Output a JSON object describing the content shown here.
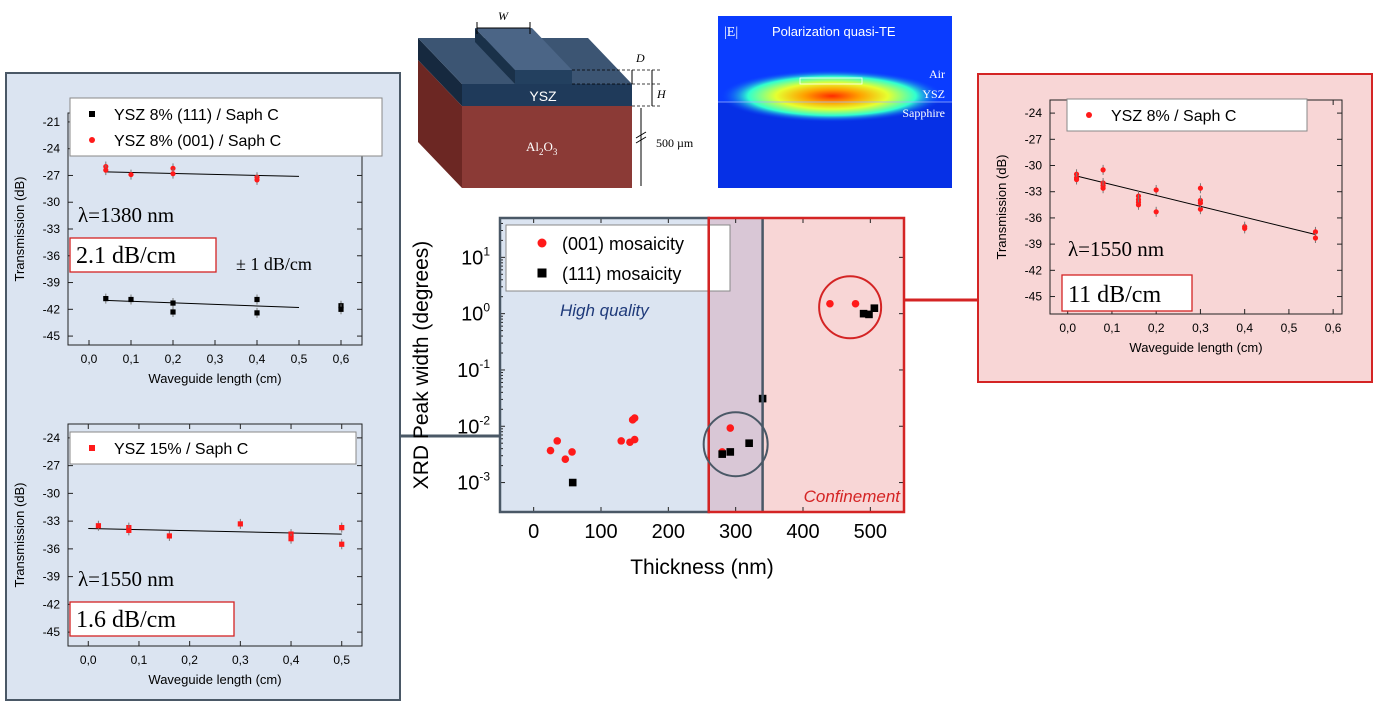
{
  "colors": {
    "panel_blue": "#dbe4f1",
    "panel_red": "#f8d6d6",
    "panel_purple": "#d9c7d6",
    "red_marker": "#ff1a1a",
    "black_marker": "#000000",
    "frame_red": "#d42424",
    "frame_gray": "#4a5866",
    "slab_top": "#1f3a5a",
    "substrate": "#8b3a36"
  },
  "diagram": {
    "label_W": "W",
    "label_D": "D",
    "label_H": "H",
    "label_ysz": "YSZ",
    "label_al2o3": "Al",
    "label_al2o3_sub1": "2",
    "label_al2o3_mid": "O",
    "label_al2o3_sub2": "3",
    "label_thickness": "500 µm"
  },
  "mode_image": {
    "label_E": "|E|",
    "title": "Polarization quasi-TE",
    "label_air": "Air",
    "label_ysz": "YSZ",
    "label_sapphire": "Sapphire"
  },
  "chart_data": [
    {
      "id": "main",
      "type": "scatter",
      "xlabel": "Thickness (nm)",
      "ylabel": "XRD Peak width (degrees)",
      "xlim": [
        -50,
        550
      ],
      "ylim": [
        0.0003,
        50
      ],
      "yscale": "log",
      "xticks": [
        0,
        100,
        200,
        300,
        400,
        500
      ],
      "xtick_labels": [
        "0",
        "100",
        "200",
        "300",
        "400",
        "500"
      ],
      "yticks": [
        0.001,
        0.01,
        0.1,
        1,
        10
      ],
      "ytick_bases": [
        "10",
        "10",
        "10",
        "10",
        "10"
      ],
      "ytick_exps": [
        "-3",
        "-2",
        "-1",
        "0",
        "1"
      ],
      "legend_position": "top-left",
      "regions": [
        {
          "label": "High quality",
          "from": -50,
          "to": 260,
          "color": "#dbe4f1"
        },
        {
          "label": "",
          "from": 260,
          "to": 340,
          "color": "#d9c7d6"
        },
        {
          "label": "Confinement",
          "from": 340,
          "to": 550,
          "color": "#f8d6d6"
        }
      ],
      "series": [
        {
          "name": "(001) mosaicity",
          "marker": "circle",
          "color": "#ff1a1a",
          "x": [
            25,
            35,
            47,
            57,
            130,
            143,
            147,
            150,
            150,
            280,
            292,
            440,
            478
          ],
          "y": [
            0.0037,
            0.0055,
            0.0026,
            0.0035,
            0.0055,
            0.0052,
            0.013,
            0.014,
            0.0058,
            0.0035,
            0.0093,
            1.5,
            1.5
          ]
        },
        {
          "name": "(111) mosaicity",
          "marker": "square",
          "color": "#000000",
          "x": [
            58,
            280,
            292,
            320,
            340,
            490,
            498,
            506
          ],
          "y": [
            0.001,
            0.0032,
            0.0035,
            0.005,
            0.031,
            1.0,
            0.97,
            1.25
          ]
        }
      ]
    },
    {
      "id": "top_left",
      "type": "scatter",
      "xlabel": "Waveguide length (cm)",
      "ylabel": "Transmission (dB)",
      "xlim": [
        -0.05,
        0.65
      ],
      "ylim": [
        -46,
        -20
      ],
      "xticks": [
        0.0,
        0.1,
        0.2,
        0.3,
        0.4,
        0.5,
        0.6
      ],
      "xtick_labels": [
        "0,0",
        "0,1",
        "0,2",
        "0,3",
        "0,4",
        "0,5",
        "0,6"
      ],
      "yticks": [
        -45,
        -42,
        -39,
        -36,
        -33,
        -30,
        -27,
        -24,
        -21
      ],
      "ytick_labels": [
        "-45",
        "-42",
        "-39",
        "-36",
        "-33",
        "-30",
        "-27",
        "-24",
        "-21"
      ],
      "legend_position": "top",
      "annotations": [
        "λ=1380 nm",
        "2.1 dB/cm",
        "± 1 dB/cm"
      ],
      "series": [
        {
          "name": "YSZ 8% (111) / Saph C",
          "marker": "square",
          "color": "#000000",
          "x": [
            0.04,
            0.1,
            0.2,
            0.2,
            0.4,
            0.4,
            0.6,
            0.6
          ],
          "y": [
            -40.8,
            -40.9,
            -41.3,
            -42.3,
            -40.9,
            -42.4,
            -41.6,
            -42.0
          ]
        },
        {
          "name": "YSZ 8% (001) / Saph C",
          "marker": "circle",
          "color": "#ff1a1a",
          "x": [
            0.04,
            0.04,
            0.1,
            0.2,
            0.2,
            0.4,
            0.4
          ],
          "y": [
            -26.0,
            -26.4,
            -26.9,
            -26.2,
            -26.8,
            -27.2,
            -27.5
          ]
        }
      ],
      "fits": [
        {
          "x": [
            0.04,
            0.5
          ],
          "y": [
            -26.6,
            -27.1
          ]
        },
        {
          "x": [
            0.04,
            0.5
          ],
          "y": [
            -41.0,
            -41.8
          ]
        }
      ]
    },
    {
      "id": "bottom_left",
      "type": "scatter",
      "xlabel": "Waveguide length (cm)",
      "ylabel": "Transmission (dB)",
      "xlim": [
        -0.04,
        0.54
      ],
      "ylim": [
        -46.5,
        -22.5
      ],
      "xticks": [
        0.0,
        0.1,
        0.2,
        0.3,
        0.4,
        0.5
      ],
      "xtick_labels": [
        "0,0",
        "0,1",
        "0,2",
        "0,3",
        "0,4",
        "0,5"
      ],
      "yticks": [
        -45,
        -42,
        -39,
        -36,
        -33,
        -30,
        -27,
        -24
      ],
      "ytick_labels": [
        "-45",
        "-42",
        "-39",
        "-36",
        "-33",
        "-30",
        "-27",
        "-24"
      ],
      "legend_position": "top",
      "annotations": [
        "λ=1550 nm",
        "1.6 dB/cm"
      ],
      "series": [
        {
          "name": "YSZ 15% / Saph C",
          "marker": "square",
          "color": "#ff1a1a",
          "x": [
            0.02,
            0.08,
            0.08,
            0.16,
            0.3,
            0.4,
            0.4,
            0.5,
            0.5
          ],
          "y": [
            -33.5,
            -33.7,
            -34.0,
            -34.6,
            -33.3,
            -34.4,
            -34.9,
            -33.7,
            -35.5
          ]
        }
      ],
      "fits": [
        {
          "x": [
            0.0,
            0.5
          ],
          "y": [
            -33.8,
            -34.4
          ]
        }
      ]
    },
    {
      "id": "right",
      "type": "scatter",
      "xlabel": "Waveguide length (cm)",
      "ylabel": "Transmission (dB)",
      "xlim": [
        -0.04,
        0.62
      ],
      "ylim": [
        -47,
        -22.5
      ],
      "xticks": [
        0.0,
        0.1,
        0.2,
        0.3,
        0.4,
        0.5,
        0.6
      ],
      "xtick_labels": [
        "0,0",
        "0,1",
        "0,2",
        "0,3",
        "0,4",
        "0,5",
        "0,6"
      ],
      "yticks": [
        -45,
        -42,
        -39,
        -36,
        -33,
        -30,
        -27,
        -24
      ],
      "ytick_labels": [
        "-45",
        "-42",
        "-39",
        "-36",
        "-33",
        "-30",
        "-27",
        "-24"
      ],
      "legend_position": "top",
      "annotations": [
        "λ=1550 nm",
        "11 dB/cm"
      ],
      "series": [
        {
          "name": "YSZ 8% / Saph C",
          "marker": "circle",
          "color": "#ff1a1a",
          "x": [
            0.02,
            0.02,
            0.02,
            0.08,
            0.08,
            0.08,
            0.08,
            0.16,
            0.16,
            0.16,
            0.16,
            0.2,
            0.2,
            0.3,
            0.3,
            0.3,
            0.3,
            0.4,
            0.4,
            0.56,
            0.56
          ],
          "y": [
            -31.0,
            -31.4,
            -31.6,
            -30.5,
            -32.0,
            -32.3,
            -32.6,
            -33.5,
            -33.9,
            -34.2,
            -34.5,
            -32.8,
            -35.3,
            -32.6,
            -34.0,
            -35.0,
            -34.3,
            -37.0,
            -37.2,
            -37.6,
            -38.3
          ]
        }
      ],
      "fits": [
        {
          "x": [
            0.02,
            0.56
          ],
          "y": [
            -31.2,
            -37.9
          ]
        }
      ]
    }
  ]
}
